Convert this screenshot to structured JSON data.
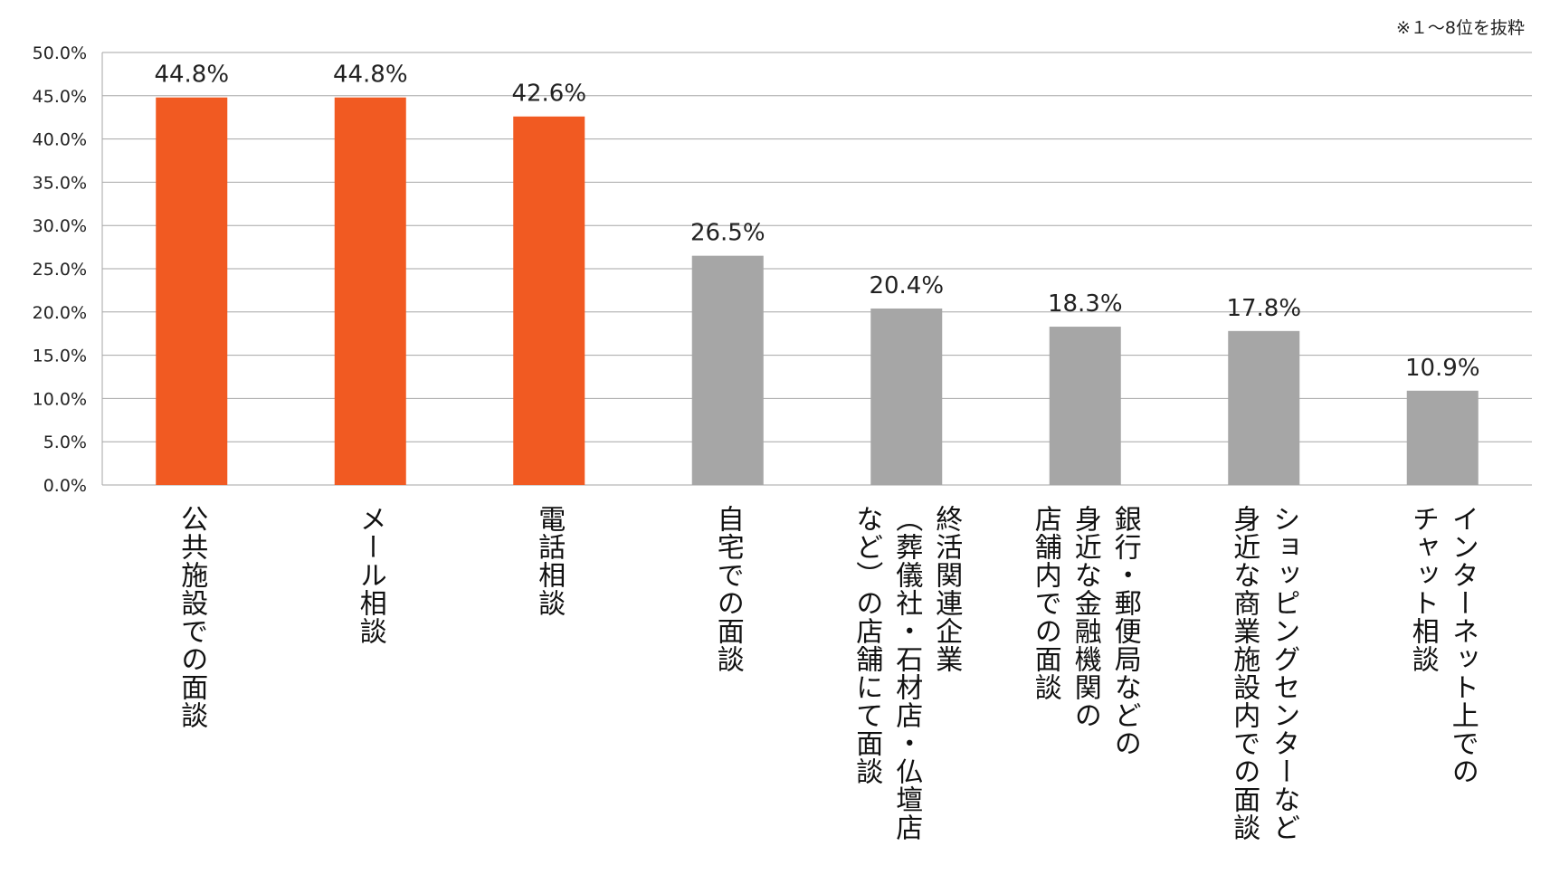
{
  "note": "※１～8位を抜粋",
  "chart_data": {
    "type": "bar",
    "title": "",
    "xlabel": "",
    "ylabel": "",
    "ylim": [
      0,
      50
    ],
    "y_ticks": [
      "0.0%",
      "5.0%",
      "10.0%",
      "15.0%",
      "20.0%",
      "25.0%",
      "30.0%",
      "35.0%",
      "40.0%",
      "45.0%",
      "50.0%"
    ],
    "grid": true,
    "categories": [
      [
        "公共施設での面談"
      ],
      [
        "メール相談"
      ],
      [
        "電話相談"
      ],
      [
        "自宅での面談"
      ],
      [
        "終活関連企業",
        "（葬儀社・石材店・仏壇店",
        "など）の店舗にて面談"
      ],
      [
        "銀行・郵便局などの",
        "身近な金融機関の",
        "店舗内での面談"
      ],
      [
        "ショッピングセンターなど",
        "身近な商業施設内での面談"
      ],
      [
        "インターネット上での",
        "チャット相談"
      ]
    ],
    "values": [
      44.8,
      44.8,
      42.6,
      26.5,
      20.4,
      18.3,
      17.8,
      10.9
    ],
    "value_labels": [
      "44.8%",
      "44.8%",
      "42.6%",
      "26.5%",
      "20.4%",
      "18.3%",
      "17.8%",
      "10.9%"
    ],
    "bar_colors": [
      "#F15A22",
      "#F15A22",
      "#F15A22",
      "#A6A6A6",
      "#A6A6A6",
      "#A6A6A6",
      "#A6A6A6",
      "#A6A6A6"
    ],
    "gridline_color": "#A6A6A6"
  }
}
